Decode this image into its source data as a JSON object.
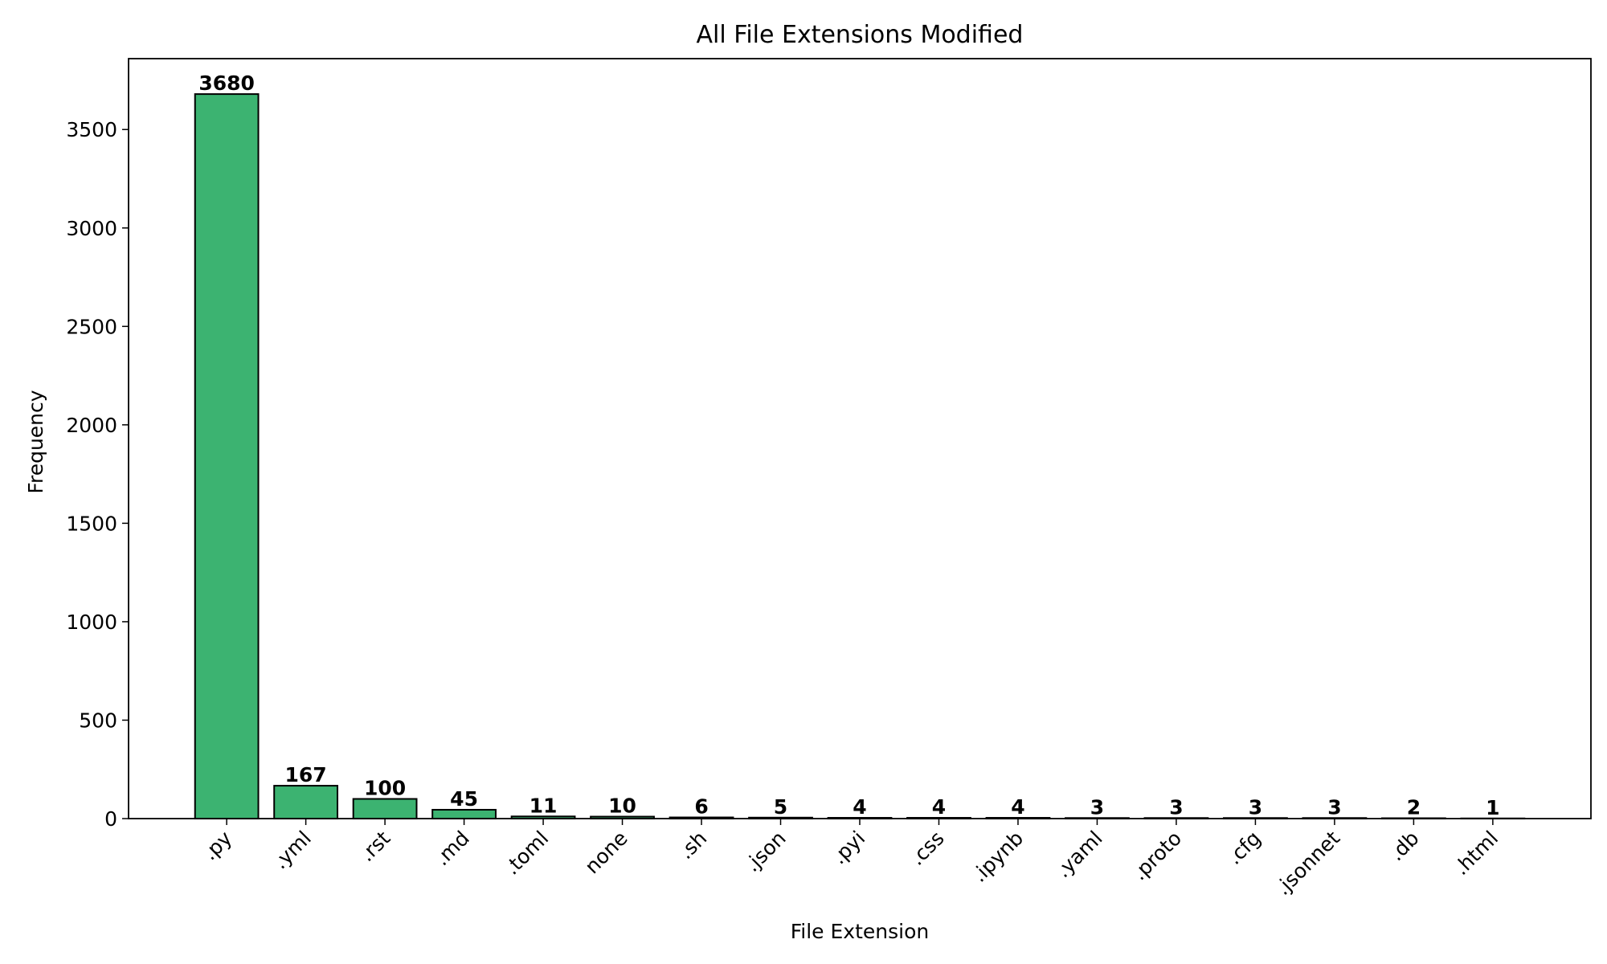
{
  "chart_data": {
    "type": "bar",
    "title": "All File Extensions Modified",
    "xlabel": "File Extension",
    "ylabel": "Frequency",
    "categories": [
      ".py",
      ".yml",
      ".rst",
      ".md",
      ".toml",
      "none",
      ".sh",
      ".json",
      ".pyi",
      ".css",
      ".ipynb",
      ".yaml",
      ".proto",
      ".cfg",
      ".jsonnet",
      ".db",
      ".html"
    ],
    "values": [
      3680,
      167,
      100,
      45,
      11,
      10,
      6,
      5,
      4,
      4,
      4,
      3,
      3,
      3,
      3,
      2,
      1
    ],
    "ylim": [
      0,
      3860
    ],
    "yticks": [
      0,
      500,
      1000,
      1500,
      2000,
      2500,
      3000,
      3500
    ],
    "bar_color": "#3cb371",
    "edge_color": "#000000",
    "grid": false,
    "show_data_labels": true
  }
}
